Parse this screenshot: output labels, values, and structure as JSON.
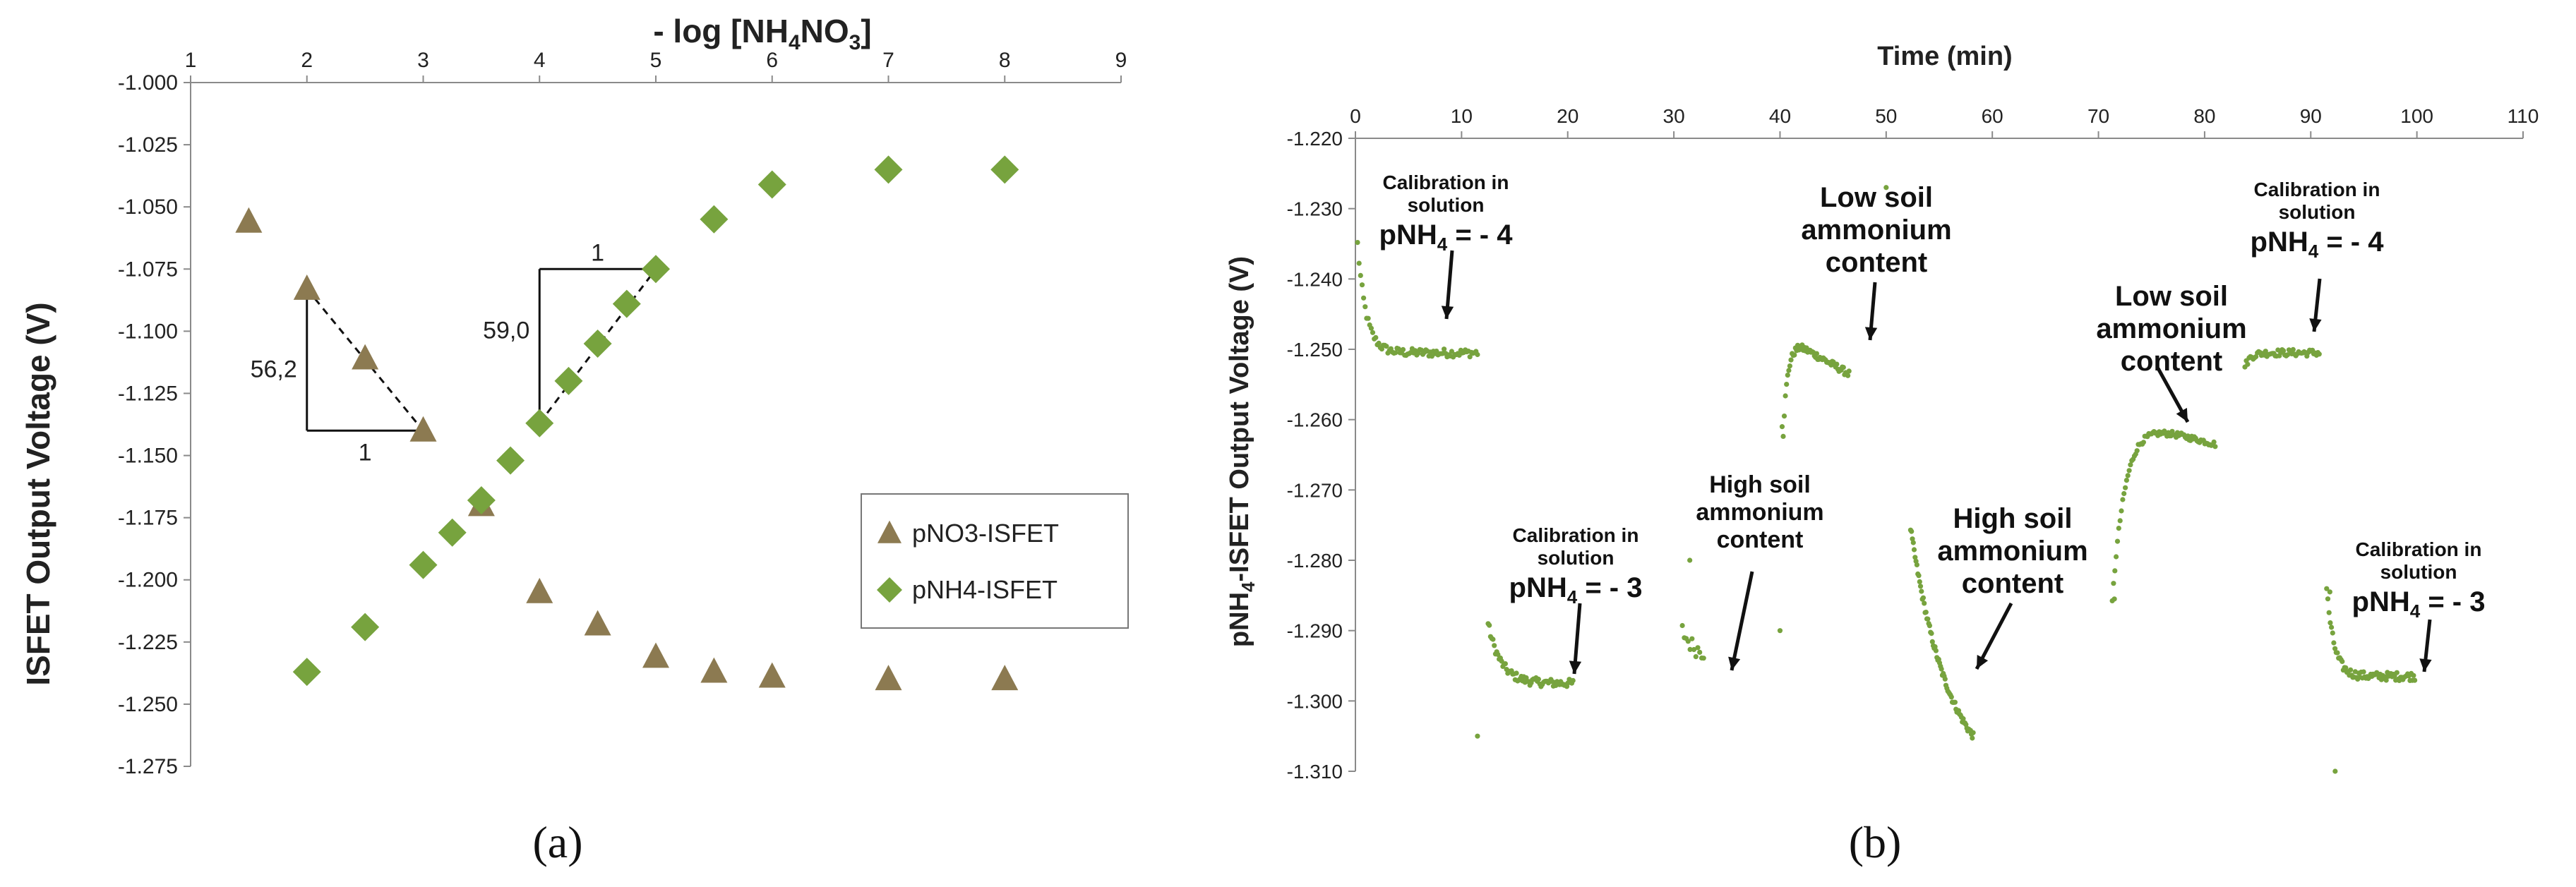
{
  "colors": {
    "pno3": "#8C7A51",
    "pnh4": "#77A33E",
    "axis": "#8a8a8a",
    "text": "#222222"
  },
  "chart_data": [
    {
      "id": "a",
      "type": "scatter",
      "panel_label": "(a)",
      "title": "- log [NH4NO3]",
      "title_main": "- log [NH",
      "title_sub1": "4",
      "title_mid": "NO",
      "title_sub2": "3",
      "title_end": "]",
      "xlabel": "- log [NH4NO3]",
      "ylabel": "ISFET Output Voltage (V)",
      "xlim": [
        1,
        9
      ],
      "ylim": [
        -1.275,
        -1.0
      ],
      "xticks": [
        1,
        2,
        3,
        4,
        5,
        6,
        7,
        8,
        9
      ],
      "yticks": [
        "-1.000",
        "-1.025",
        "-1.050",
        "-1.075",
        "-1.100",
        "-1.125",
        "-1.150",
        "-1.175",
        "-1.200",
        "-1.225",
        "-1.250",
        "-1.275"
      ],
      "series": [
        {
          "name": "pNO3-ISFET",
          "marker": "triangle",
          "x": [
            1.5,
            2,
            2.5,
            3,
            3.5,
            4,
            4.5,
            5,
            5.5,
            6,
            7,
            8
          ],
          "y": [
            -1.056,
            -1.083,
            -1.111,
            -1.14,
            -1.17,
            -1.205,
            -1.218,
            -1.231,
            -1.237,
            -1.239,
            -1.24,
            -1.24
          ]
        },
        {
          "name": "pNH4-ISFET",
          "marker": "diamond",
          "x": [
            2,
            2.5,
            3,
            3.25,
            3.5,
            3.75,
            4,
            4.25,
            4.5,
            4.75,
            5,
            5.5,
            6,
            7,
            8
          ],
          "y": [
            -1.237,
            -1.219,
            -1.194,
            -1.181,
            -1.168,
            -1.152,
            -1.137,
            -1.12,
            -1.105,
            -1.089,
            -1.075,
            -1.055,
            -1.041,
            -1.035,
            -1.035
          ]
        }
      ],
      "annotations": [
        {
          "label": "slope_no3_vertical",
          "text": "56,2"
        },
        {
          "label": "slope_no3_horizontal",
          "text": "1"
        },
        {
          "label": "slope_nh4_vertical",
          "text": "59,0"
        },
        {
          "label": "slope_nh4_horizontal",
          "text": "1"
        }
      ],
      "legend": {
        "position": "bottom-right",
        "entries": [
          "pNO3-ISFET",
          "pNH4-ISFET"
        ]
      }
    },
    {
      "id": "b",
      "type": "scatter",
      "panel_label": "(b)",
      "title": "Time (min)",
      "xlabel": "Time (min)",
      "ylabel": "pNH4-ISFET Output Voltage (V)",
      "ylabel_pre": "pNH",
      "ylabel_sub": "4",
      "ylabel_post": "-ISFET Output Voltage (V)",
      "xlim": [
        0,
        110
      ],
      "ylim": [
        -1.31,
        -1.22
      ],
      "xticks": [
        0,
        10,
        20,
        30,
        40,
        50,
        60,
        70,
        80,
        90,
        100,
        110
      ],
      "yticks": [
        "-1.220",
        "-1.230",
        "-1.240",
        "-1.250",
        "-1.260",
        "-1.270",
        "-1.280",
        "-1.290",
        "-1.300",
        "-1.310"
      ],
      "segments": [
        {
          "name": "calibration pNH4 -4 (start)",
          "t0": 0.2,
          "t1": 11.5,
          "v0": -1.235,
          "v1": -1.2505,
          "tau": 0.8,
          "vend": -1.2505,
          "n": 80,
          "noise": 0.0006
        },
        {
          "name": "calibration pNH4 -3",
          "t0": 12.5,
          "t1": 20.5,
          "v0": -1.289,
          "v1": -1.2975,
          "tau": 1.2,
          "vend": -1.2975,
          "n": 70,
          "noise": 0.0006
        },
        {
          "name": "high soil short",
          "t0": 30.8,
          "t1": 32.8,
          "v0": -1.29,
          "v1": -1.2935,
          "tau": 1.0,
          "vend": -1.2935,
          "n": 12,
          "noise": 0.0012
        },
        {
          "name": "low soil ammonium content",
          "t0": 40.3,
          "t1": 46.5,
          "v0": -1.262,
          "v1": -1.2535,
          "tau": 0.4,
          "peak": -1.2495,
          "n": 60,
          "noise": 0.0005
        },
        {
          "name": "high soil ammonium content",
          "t0": 52.3,
          "t1": 58.2,
          "v0": -1.2755,
          "v1": -1.305,
          "tau": 3.0,
          "vend": -1.312,
          "n": 70,
          "noise": 0.0005
        },
        {
          "name": "low soil ammonium content 2",
          "t0": 71.3,
          "t1": 81.0,
          "v0": -1.286,
          "v1": -1.2635,
          "tau": 1.2,
          "peak": -1.2605,
          "n": 80,
          "noise": 0.0004
        },
        {
          "name": "calibration pNH4 -4 (end)",
          "t0": 83.8,
          "t1": 90.8,
          "v0": -1.2525,
          "v1": -1.251,
          "tau": 0.5,
          "vend": -1.2505,
          "n": 55,
          "noise": 0.0005
        },
        {
          "name": "calibration pNH4 -3 (end)",
          "t0": 91.5,
          "t1": 99.8,
          "v0": -1.284,
          "v1": -1.2965,
          "tau": 0.7,
          "vend": -1.2965,
          "n": 75,
          "noise": 0.0006
        }
      ],
      "outliers": [
        {
          "t": 11.5,
          "v": -1.305
        },
        {
          "t": 31.5,
          "v": -1.28
        },
        {
          "t": 40.0,
          "v": -1.29
        },
        {
          "t": 40.2,
          "v": -1.261
        },
        {
          "t": 50.0,
          "v": -1.227
        },
        {
          "t": 71.5,
          "v": -1.2855
        },
        {
          "t": 91.8,
          "v": -1.2845
        },
        {
          "t": 92.3,
          "v": -1.31
        }
      ],
      "annotations": [
        {
          "label": "cal4_a",
          "line1": "Calibration in",
          "line2": "solution",
          "main": "pNH",
          "sub": "4",
          "tail": " = - 4"
        },
        {
          "label": "cal3_a",
          "line1": "Calibration in",
          "line2": "solution",
          "main": "pNH",
          "sub": "4",
          "tail": " = - 3"
        },
        {
          "label": "high_a",
          "line1": "High soil",
          "line2": "ammonium",
          "line3": "content"
        },
        {
          "label": "low_a",
          "line1": "Low soil",
          "line2": "ammonium",
          "line3": "content"
        },
        {
          "label": "high_b",
          "line1": "High soil",
          "line2": "ammonium",
          "line3": "content"
        },
        {
          "label": "low_b",
          "line1": "Low soil",
          "line2": "ammonium",
          "line3": "content"
        },
        {
          "label": "cal4_b",
          "line1": "Calibration in",
          "line2": "solution",
          "main": "pNH",
          "sub": "4",
          "tail": " = - 4"
        },
        {
          "label": "cal3_b",
          "line1": "Calibration in",
          "line2": "solution",
          "main": "pNH",
          "sub": "4",
          "tail": " = - 3"
        }
      ]
    }
  ]
}
